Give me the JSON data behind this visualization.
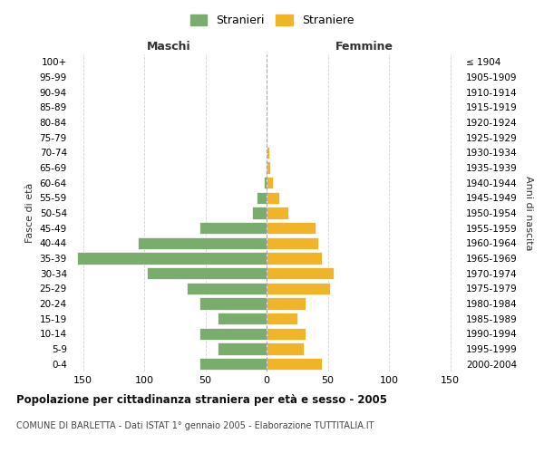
{
  "age_groups": [
    "0-4",
    "5-9",
    "10-14",
    "15-19",
    "20-24",
    "25-29",
    "30-34",
    "35-39",
    "40-44",
    "45-49",
    "50-54",
    "55-59",
    "60-64",
    "65-69",
    "70-74",
    "75-79",
    "80-84",
    "85-89",
    "90-94",
    "95-99",
    "100+"
  ],
  "birth_years": [
    "2000-2004",
    "1995-1999",
    "1990-1994",
    "1985-1989",
    "1980-1984",
    "1975-1979",
    "1970-1974",
    "1965-1969",
    "1960-1964",
    "1955-1959",
    "1950-1954",
    "1945-1949",
    "1940-1944",
    "1935-1939",
    "1930-1934",
    "1925-1929",
    "1920-1924",
    "1915-1919",
    "1910-1914",
    "1905-1909",
    "≤ 1904"
  ],
  "males": [
    55,
    40,
    55,
    40,
    55,
    65,
    98,
    155,
    105,
    55,
    12,
    8,
    2,
    1,
    0,
    0,
    0,
    0,
    0,
    0,
    0
  ],
  "females": [
    45,
    30,
    32,
    25,
    32,
    52,
    55,
    45,
    42,
    40,
    18,
    10,
    5,
    3,
    2,
    1,
    1,
    1,
    0,
    0,
    0
  ],
  "male_color": "#7aad6d",
  "female_color": "#f0b429",
  "background_color": "#ffffff",
  "grid_color": "#cccccc",
  "title": "Popolazione per cittadinanza straniera per età e sesso - 2005",
  "subtitle": "COMUNE DI BARLETTA - Dati ISTAT 1° gennaio 2005 - Elaborazione TUTTITALIA.IT",
  "xlabel_left": "Maschi",
  "xlabel_right": "Femmine",
  "ylabel_left": "Fasce di età",
  "ylabel_right": "Anni di nascita",
  "legend_males": "Stranieri",
  "legend_females": "Straniere",
  "xlim": 160,
  "xtick_positions": [
    -150,
    -100,
    -50,
    0,
    50,
    100,
    150
  ]
}
